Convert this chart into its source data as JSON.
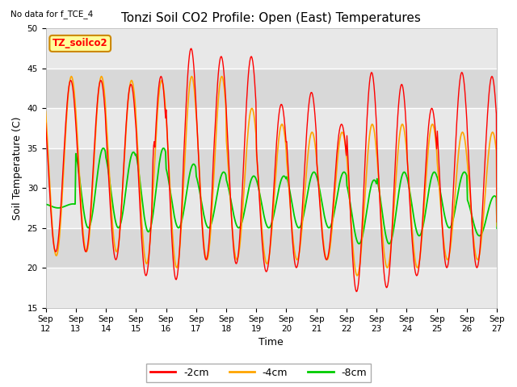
{
  "title": "Tonzi Soil CO2 Profile: Open (East) Temperatures",
  "no_data_label": "No data for f_TCE_4",
  "ylabel": "Soil Temperature (C)",
  "xlabel": "Time",
  "ylim": [
    15,
    50
  ],
  "xlim_days": [
    12,
    27
  ],
  "background_color": "#ffffff",
  "plot_bg_color": "#e8e8e8",
  "plot_bg_stripe1": "#e0e0e0",
  "plot_bg_stripe2": "#ebebeb",
  "grid_color": "#ffffff",
  "colors": {
    "2cm": "#ff0000",
    "4cm": "#ffa500",
    "8cm": "#00cc00"
  },
  "legend_labels": [
    "-2cm",
    "-4cm",
    "-8cm"
  ],
  "legend_box_label": "TZ_soilco2",
  "legend_box_color": "#ffff99",
  "legend_box_border": "#cc8800",
  "title_fontsize": 11,
  "axis_label_fontsize": 9,
  "tick_fontsize": 7.5,
  "x_tick_labels": [
    "Sep 12",
    "Sep 13",
    "Sep 14",
    "Sep 15",
    "Sep 16",
    "Sep 17",
    "Sep 18",
    "Sep 19",
    "Sep 20",
    "Sep 21",
    "Sep 22",
    "Sep 23",
    "Sep 24",
    "Sep 25",
    "Sep 26",
    "Sep 27"
  ],
  "x_tick_positions": [
    12,
    13,
    14,
    15,
    16,
    17,
    18,
    19,
    20,
    21,
    22,
    23,
    24,
    25,
    26,
    27
  ]
}
